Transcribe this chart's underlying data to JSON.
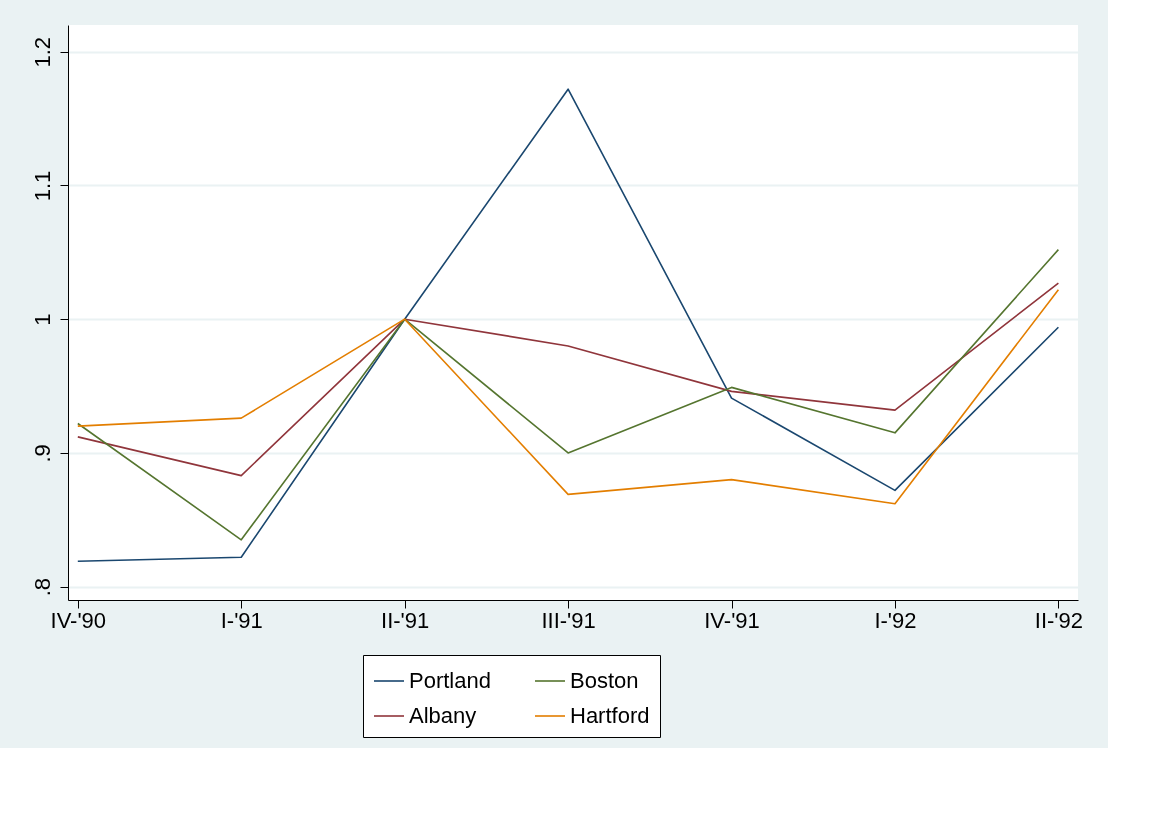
{
  "chart_data": {
    "type": "line",
    "categories": [
      "IV-'90",
      "I-'91",
      "II-'91",
      "III-'91",
      "IV-'91",
      "I-'92",
      "II-'92"
    ],
    "series": [
      {
        "name": "Portland",
        "color": "#1a476f",
        "values": [
          0.819,
          0.822,
          1.0,
          1.172,
          0.941,
          0.872,
          0.994
        ]
      },
      {
        "name": "Albany",
        "color": "#90353b",
        "values": [
          0.912,
          0.883,
          1.0,
          0.98,
          0.946,
          0.932,
          1.027
        ]
      },
      {
        "name": "Boston",
        "color": "#55752f",
        "values": [
          0.922,
          0.835,
          1.0,
          0.9,
          0.949,
          0.915,
          1.052
        ]
      },
      {
        "name": "Hartford",
        "color": "#e37e00",
        "values": [
          0.92,
          0.926,
          1.0,
          0.869,
          0.88,
          0.862,
          1.022
        ]
      }
    ],
    "ylim": [
      0.79,
      1.22
    ],
    "yticks": [
      {
        "value": 0.8,
        "label": ".8"
      },
      {
        "value": 0.9,
        "label": ".9"
      },
      {
        "value": 1,
        "label": "1"
      },
      {
        "value": 1.1,
        "label": "1.1"
      },
      {
        "value": 1.2,
        "label": "1.2"
      }
    ],
    "grid": "y",
    "legend": "bottom",
    "marker": "none",
    "line_style": "solid"
  }
}
